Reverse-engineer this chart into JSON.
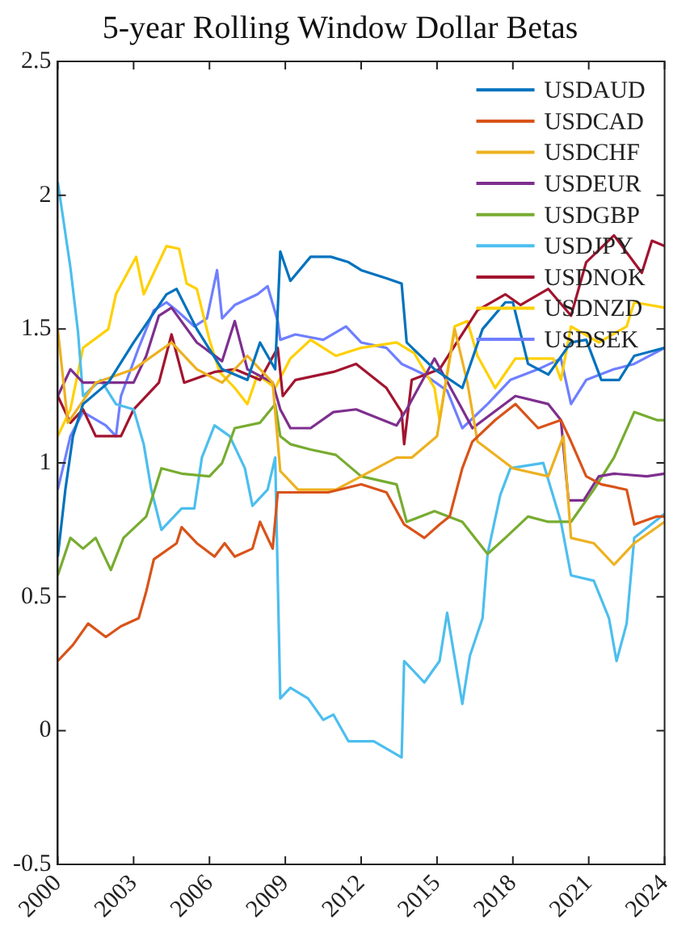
{
  "chart_data": {
    "type": "line",
    "title": "5-year Rolling Window Dollar Betas",
    "xlim": [
      2000,
      2024
    ],
    "xticks": [
      2000,
      2003,
      2006,
      2009,
      2012,
      2015,
      2018,
      2021,
      2024
    ],
    "ylim": [
      -0.5,
      2.5
    ],
    "yticks": [
      -0.5,
      0,
      0.5,
      1,
      1.5,
      2,
      2.5
    ],
    "grid": false,
    "legend": "top right",
    "marker": "none",
    "line_style": "solid",
    "series": [
      {
        "name": "USDAUD",
        "color": "#0072bd",
        "x": [
          2000,
          2000.3,
          2000.6,
          2001,
          2002,
          2003,
          2004.3,
          2004.7,
          2005.5,
          2006.5,
          2007.5,
          2008,
          2008.6,
          2008.8,
          2009.2,
          2010,
          2010.8,
          2011.5,
          2012,
          2013,
          2013.6,
          2013.8,
          2014.9,
          2016,
          2016.8,
          2017.7,
          2018,
          2018.6,
          2019.4,
          2020.3,
          2020.9,
          2021.5,
          2022.2,
          2022.8,
          2024
        ],
        "values": [
          0.65,
          0.9,
          1.1,
          1.22,
          1.3,
          1.45,
          1.63,
          1.65,
          1.5,
          1.35,
          1.31,
          1.45,
          1.35,
          1.79,
          1.68,
          1.77,
          1.77,
          1.75,
          1.72,
          1.69,
          1.67,
          1.45,
          1.35,
          1.28,
          1.5,
          1.6,
          1.6,
          1.37,
          1.33,
          1.45,
          1.46,
          1.31,
          1.31,
          1.4,
          1.43
        ]
      },
      {
        "name": "USDCAD",
        "color": "#d95319",
        "x": [
          2000,
          2000.6,
          2001.2,
          2001.9,
          2002.5,
          2003.2,
          2003.5,
          2003.8,
          2004.7,
          2004.9,
          2005.5,
          2006.2,
          2006.6,
          2007,
          2007.7,
          2008,
          2008.5,
          2008.7,
          2009.4,
          2010.7,
          2012,
          2013,
          2013.7,
          2014.5,
          2015.1,
          2015.5,
          2016,
          2016.4,
          2017.3,
          2018.1,
          2019,
          2019.9,
          2020.3,
          2020.9,
          2021.5,
          2022.5,
          2022.8,
          2023.7,
          2024
        ],
        "values": [
          0.26,
          0.32,
          0.4,
          0.35,
          0.39,
          0.42,
          0.52,
          0.64,
          0.7,
          0.76,
          0.7,
          0.65,
          0.7,
          0.65,
          0.68,
          0.78,
          0.68,
          0.89,
          0.89,
          0.89,
          0.92,
          0.89,
          0.77,
          0.72,
          0.77,
          0.8,
          0.98,
          1.08,
          1.16,
          1.22,
          1.13,
          1.16,
          1.08,
          0.95,
          0.92,
          0.9,
          0.77,
          0.8,
          0.8
        ]
      },
      {
        "name": "USDCHF",
        "color": "#edb120",
        "x": [
          2000,
          2000.4,
          2001.5,
          2003,
          2004.5,
          2005.5,
          2006.5,
          2007.5,
          2008.5,
          2008.8,
          2009.5,
          2011,
          2012,
          2013.4,
          2014,
          2015,
          2015.7,
          2016.2,
          2016.6,
          2018,
          2019.4,
          2020,
          2020.3,
          2021.2,
          2022,
          2022.8,
          2024
        ],
        "values": [
          1.5,
          1.15,
          1.3,
          1.35,
          1.45,
          1.35,
          1.3,
          1.4,
          1.3,
          0.97,
          0.9,
          0.9,
          0.95,
          1.02,
          1.02,
          1.1,
          1.5,
          1.3,
          1.08,
          0.98,
          0.95,
          1.1,
          0.72,
          0.7,
          0.62,
          0.7,
          0.78
        ]
      },
      {
        "name": "USDEUR",
        "color": "#7e2f8e",
        "x": [
          2000,
          2000.5,
          2001,
          2002,
          2003,
          2003.5,
          2004,
          2004.5,
          2005.5,
          2006.5,
          2007,
          2007.5,
          2008.5,
          2008.8,
          2009.2,
          2010,
          2010.9,
          2011.8,
          2013.4,
          2013.8,
          2014.9,
          2016,
          2016.4,
          2018.1,
          2019.4,
          2019.9,
          2020.2,
          2020.8,
          2021.4,
          2022,
          2023.3,
          2024
        ],
        "values": [
          1.25,
          1.35,
          1.3,
          1.3,
          1.3,
          1.4,
          1.55,
          1.58,
          1.45,
          1.38,
          1.53,
          1.35,
          1.3,
          1.2,
          1.13,
          1.13,
          1.19,
          1.2,
          1.14,
          1.2,
          1.39,
          1.2,
          1.13,
          1.25,
          1.22,
          1.16,
          0.86,
          0.86,
          0.95,
          0.96,
          0.95,
          0.96
        ]
      },
      {
        "name": "USDGBP",
        "color": "#77ac30",
        "x": [
          2000,
          2000.5,
          2001,
          2001.5,
          2002.1,
          2002.6,
          2003.5,
          2004.1,
          2004.9,
          2006,
          2006.5,
          2007,
          2008,
          2008.6,
          2008.8,
          2009.2,
          2010,
          2011,
          2012,
          2013.4,
          2013.8,
          2014.9,
          2016,
          2017,
          2017.7,
          2018.6,
          2019.4,
          2020.3,
          2021.2,
          2022,
          2022.8,
          2023.7,
          2024
        ],
        "values": [
          0.58,
          0.72,
          0.68,
          0.72,
          0.6,
          0.72,
          0.8,
          0.98,
          0.96,
          0.95,
          1.0,
          1.13,
          1.15,
          1.22,
          1.1,
          1.07,
          1.05,
          1.03,
          0.95,
          0.92,
          0.78,
          0.82,
          0.78,
          0.66,
          0.72,
          0.8,
          0.78,
          0.78,
          0.9,
          1.02,
          1.19,
          1.16,
          1.16
        ]
      },
      {
        "name": "USDJPY",
        "color": "#4dbeee",
        "x": [
          2000,
          2000.5,
          2000.8,
          2001,
          2001.7,
          2002.3,
          2003,
          2003.4,
          2003.7,
          2004.1,
          2004.9,
          2005.4,
          2005.7,
          2006.2,
          2006.8,
          2007.4,
          2007.7,
          2008.3,
          2008.6,
          2008.8,
          2009.2,
          2009.9,
          2010.5,
          2010.9,
          2011.5,
          2012.5,
          2013.6,
          2013.7,
          2014.5,
          2015.1,
          2015.4,
          2016,
          2016.3,
          2016.8,
          2017,
          2017.5,
          2017.9,
          2019.2,
          2019.9,
          2020.3,
          2021.2,
          2021.8,
          2022.1,
          2022.5,
          2022.8,
          2024
        ],
        "values": [
          2.05,
          1.73,
          1.49,
          1.25,
          1.31,
          1.22,
          1.2,
          1.07,
          0.9,
          0.75,
          0.83,
          0.83,
          1.02,
          1.14,
          1.1,
          0.98,
          0.84,
          0.9,
          1.02,
          0.12,
          0.16,
          0.12,
          0.04,
          0.06,
          -0.04,
          -0.04,
          -0.1,
          0.26,
          0.18,
          0.26,
          0.44,
          0.1,
          0.28,
          0.42,
          0.66,
          0.88,
          0.98,
          1.0,
          0.78,
          0.58,
          0.56,
          0.42,
          0.26,
          0.4,
          0.72,
          0.81
        ]
      },
      {
        "name": "USDNOK",
        "color": "#a2142f",
        "x": [
          2000,
          2000.5,
          2001,
          2001.5,
          2002.5,
          2003,
          2004,
          2004.5,
          2005,
          2006.2,
          2007,
          2008,
          2008.7,
          2008.9,
          2009.4,
          2010.9,
          2011.8,
          2013,
          2013.6,
          2013.7,
          2014,
          2015.1,
          2016.6,
          2017.7,
          2018.3,
          2019.4,
          2020.3,
          2020.9,
          2022,
          2023.1,
          2023.5,
          2024
        ],
        "values": [
          1.25,
          1.15,
          1.2,
          1.1,
          1.1,
          1.2,
          1.3,
          1.48,
          1.3,
          1.34,
          1.35,
          1.31,
          1.43,
          1.25,
          1.31,
          1.34,
          1.37,
          1.28,
          1.19,
          1.07,
          1.31,
          1.35,
          1.57,
          1.63,
          1.59,
          1.65,
          1.55,
          1.75,
          1.85,
          1.71,
          1.83,
          1.81
        ]
      },
      {
        "name": "USDNZD",
        "color": "#ffd000",
        "x": [
          2000,
          2000.5,
          2001,
          2002,
          2002.3,
          2003.1,
          2003.4,
          2004.3,
          2004.8,
          2005.1,
          2005.5,
          2006,
          2006.4,
          2007,
          2007.5,
          2007.9,
          2008.6,
          2009.2,
          2010,
          2011,
          2012,
          2013.4,
          2014.1,
          2014.9,
          2015.1,
          2015.7,
          2016.2,
          2016.6,
          2017.3,
          2018.1,
          2019.6,
          2019.9,
          2020.3,
          2021.4,
          2022.5,
          2022.8,
          2024
        ],
        "values": [
          1.1,
          1.2,
          1.43,
          1.5,
          1.63,
          1.77,
          1.63,
          1.81,
          1.8,
          1.67,
          1.65,
          1.46,
          1.34,
          1.28,
          1.22,
          1.33,
          1.28,
          1.39,
          1.46,
          1.4,
          1.43,
          1.45,
          1.41,
          1.28,
          1.16,
          1.51,
          1.53,
          1.4,
          1.28,
          1.39,
          1.39,
          1.31,
          1.51,
          1.45,
          1.51,
          1.6,
          1.58
        ]
      },
      {
        "name": "USDSEK",
        "color": "#6f7fff",
        "x": [
          2000,
          2000.5,
          2001,
          2001.9,
          2002.3,
          2002.5,
          2003.2,
          2003.8,
          2004.3,
          2004.7,
          2005.4,
          2005.9,
          2006.3,
          2006.5,
          2007,
          2007.9,
          2008.3,
          2008.7,
          2008.8,
          2009.4,
          2010.5,
          2011.4,
          2012,
          2013,
          2013.6,
          2014.5,
          2015.4,
          2016,
          2017,
          2017.9,
          2019,
          2019.9,
          2020.3,
          2020.9,
          2022,
          2022.8,
          2024
        ],
        "values": [
          0.9,
          1.1,
          1.19,
          1.14,
          1.1,
          1.25,
          1.43,
          1.57,
          1.6,
          1.57,
          1.51,
          1.54,
          1.72,
          1.54,
          1.59,
          1.63,
          1.66,
          1.53,
          1.46,
          1.48,
          1.46,
          1.51,
          1.45,
          1.43,
          1.37,
          1.33,
          1.27,
          1.13,
          1.22,
          1.31,
          1.35,
          1.39,
          1.22,
          1.31,
          1.35,
          1.37,
          1.43
        ]
      }
    ]
  }
}
